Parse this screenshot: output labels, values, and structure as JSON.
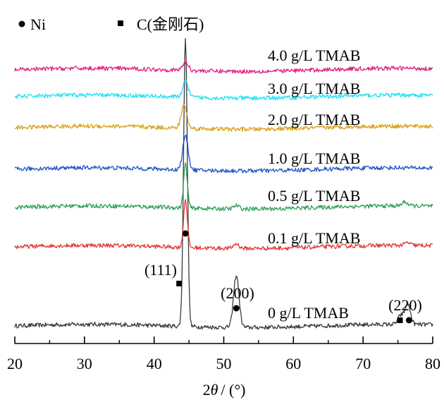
{
  "legend": {
    "items": [
      {
        "marker": "circle",
        "label": "Ni"
      },
      {
        "marker": "square",
        "label": "C(金刚石)"
      }
    ]
  },
  "chart_data": {
    "type": "line",
    "title": "",
    "xlabel": "2θ / (°)",
    "xlabel_prefix": "2",
    "xlabel_theta": "θ",
    "xlabel_suffix": "/ (°)",
    "ylabel": "",
    "xlim": [
      20,
      80
    ],
    "xticks": [
      20,
      30,
      40,
      50,
      60,
      70,
      80
    ],
    "grid": false,
    "legend_position": "top-left",
    "series": [
      {
        "name": "0 g/L TMAB",
        "color": "#3a3a3a",
        "peaks": [
          {
            "x": 44.5,
            "height": 1.0
          },
          {
            "x": 51.8,
            "height": 0.18
          },
          {
            "x": 76.4,
            "height": 0.07
          },
          {
            "x": 75.4,
            "height": 0.03
          }
        ]
      },
      {
        "name": "0.1 g/L TMAB",
        "color": "#e23a3a",
        "peaks": [
          {
            "x": 44.5,
            "height": 0.72
          },
          {
            "x": 51.8,
            "height": 0.07
          },
          {
            "x": 76.4,
            "height": 0.04
          }
        ]
      },
      {
        "name": "0.5 g/L TMAB",
        "color": "#2e9e5b",
        "peaks": [
          {
            "x": 44.5,
            "height": 0.65
          },
          {
            "x": 51.8,
            "height": 0.05
          },
          {
            "x": 76.0,
            "height": 0.06
          }
        ]
      },
      {
        "name": "1.0 g/L TMAB",
        "color": "#1f55c6",
        "peaks": [
          {
            "x": 44.5,
            "height": 0.48
          }
        ]
      },
      {
        "name": "2.0 g/L TMAB",
        "color": "#d9a21c",
        "peaks": [
          {
            "x": 44.3,
            "height": 0.33
          }
        ]
      },
      {
        "name": "3.0 g/L TMAB",
        "color": "#1fe0f2",
        "peaks": [
          {
            "x": 44.5,
            "height": 0.22
          }
        ]
      },
      {
        "name": "4.0 g/L TMAB",
        "color": "#e01f7a",
        "peaks": [
          {
            "x": 44.5,
            "height": 0.12
          }
        ]
      }
    ],
    "annotations": [
      {
        "label": "(111)",
        "x": 44.5,
        "markers": [
          {
            "type": "circle",
            "x": 44.5
          },
          {
            "type": "square",
            "x": 43.6
          }
        ]
      },
      {
        "label": "(200)",
        "x": 51.8,
        "markers": [
          {
            "type": "circle",
            "x": 51.8
          }
        ]
      },
      {
        "label": "(220)",
        "x": 76.4,
        "markers": [
          {
            "type": "square",
            "x": 75.3
          },
          {
            "type": "circle",
            "x": 76.6
          }
        ]
      }
    ]
  }
}
